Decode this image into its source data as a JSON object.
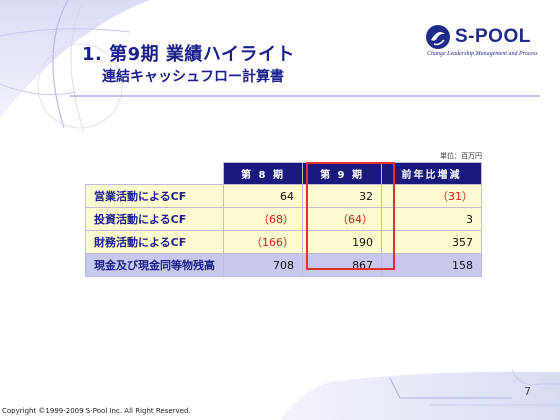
{
  "title": {
    "heading": "1. 第9期 業績ハイライト",
    "subheading": "連結キャッシュフロー計算書"
  },
  "logo": {
    "name": "S-POOL",
    "tagline": "Change Leadership,Management and Process",
    "brand_color": "#1f2a8a"
  },
  "table": {
    "unit": "単位：百万円",
    "headers": [
      "",
      "第 8 期",
      "第 9 期",
      "前年比増減"
    ],
    "rows": [
      {
        "label": "営業活動によるCF",
        "values": [
          "64",
          "32",
          "（31）"
        ]
      },
      {
        "label": "投資活動によるCF",
        "values": [
          "（68）",
          "（64）",
          "3"
        ]
      },
      {
        "label": "財務活動によるCF",
        "values": [
          "（166）",
          "190",
          "357"
        ]
      },
      {
        "label": "現金及び現金同等物残高",
        "values": [
          "708",
          "867",
          "158"
        ]
      }
    ],
    "highlight_column": "第 9 期",
    "colors": {
      "header_bg": "#1a1a7e",
      "row_bg": "#fffbd0",
      "total_bg": "#c8c8ee",
      "negative": "#d81818",
      "highlight_border": "#e53030"
    }
  },
  "footer": {
    "page_number": "7",
    "copyright": "Copyright ©1999-2009 S-Pool Inc. All Right Reserved."
  }
}
